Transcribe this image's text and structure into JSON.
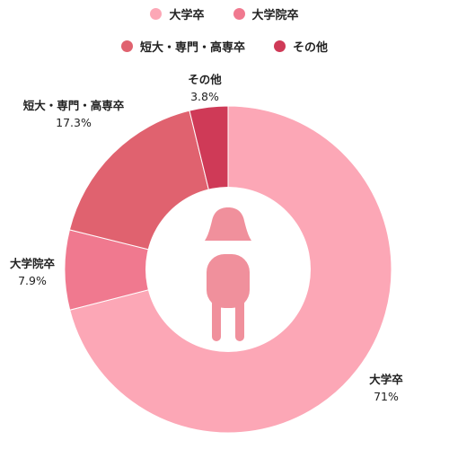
{
  "chart_data": {
    "type": "pie",
    "variant": "donut",
    "categories": [
      "大学卒",
      "大学院卒",
      "短大・専門・高専卒",
      "その他"
    ],
    "values": [
      71,
      7.9,
      17.3,
      3.8
    ],
    "value_labels": [
      "71%",
      "7.9%",
      "17.3%",
      "3.8%"
    ],
    "colors": [
      "#fca7b6",
      "#f0798f",
      "#e0626f",
      "#cf3a57"
    ],
    "legend": {
      "placement": "top",
      "rows": [
        [
          "大学卒",
          "大学院卒"
        ],
        [
          "短大・専門・高専卒",
          "その他"
        ]
      ]
    },
    "center_icon": "person-icon",
    "center_icon_color": "#f0909c"
  }
}
